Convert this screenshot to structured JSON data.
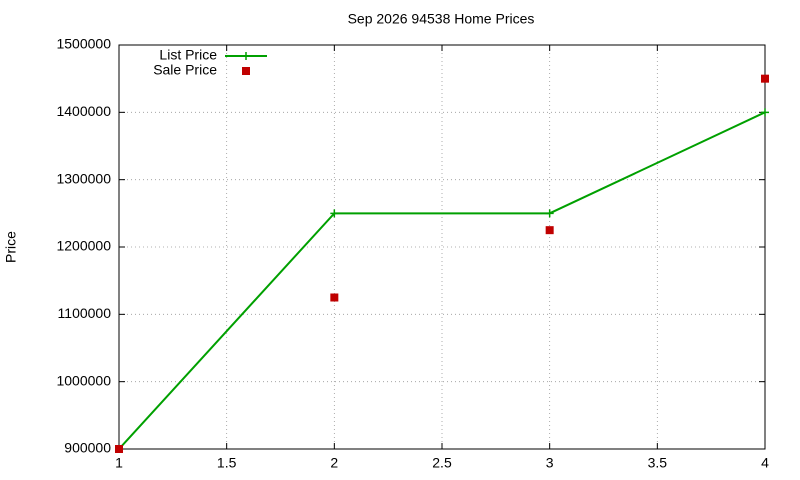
{
  "chart_data": {
    "type": "line",
    "title": "Sep 2026 94538 Home Prices",
    "y_label": "Price",
    "x": [
      1,
      2,
      3,
      4
    ],
    "series": [
      {
        "name": "List Price",
        "color": "#00a000",
        "style": "linespoints",
        "values": [
          900000,
          1250000,
          1250000,
          1400000
        ]
      },
      {
        "name": "Sale Price",
        "color": "#c00000",
        "style": "points",
        "values": [
          900000,
          1125000,
          1225000,
          1450000
        ]
      }
    ],
    "xlim": [
      1,
      4
    ],
    "xticks": [
      1,
      1.5,
      2,
      2.5,
      3,
      3.5,
      4
    ],
    "ylim": [
      900000,
      1500000
    ],
    "yticks": [
      900000,
      1000000,
      1100000,
      1200000,
      1300000,
      1400000,
      1500000
    ],
    "grid": true,
    "legend": "top-left"
  }
}
